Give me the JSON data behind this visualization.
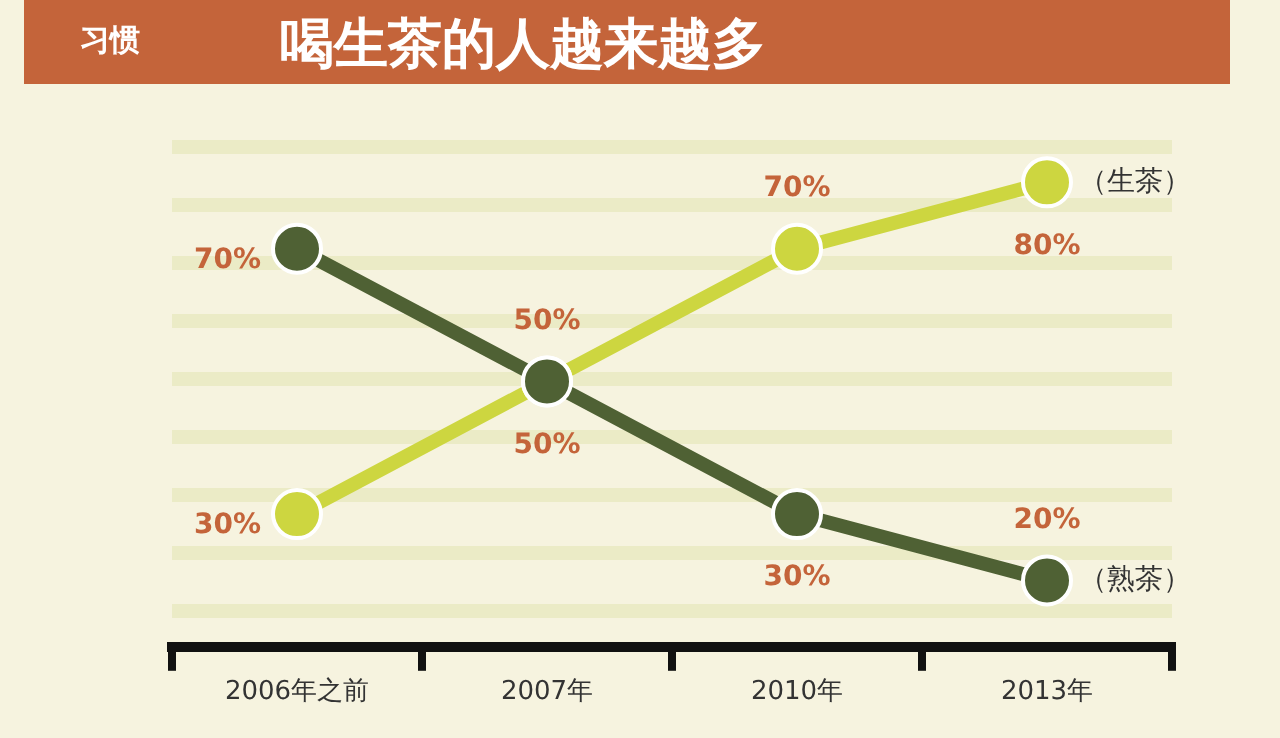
{
  "chart_data": {
    "type": "line",
    "title": "喝生茶的人越来越多",
    "subtitle": "习惯",
    "categories": [
      "2006年之前",
      "2007年",
      "2010年",
      "2013年"
    ],
    "series": [
      {
        "name": "（熟茶）",
        "color": "#4f6134",
        "values": [
          70,
          50,
          30,
          20
        ],
        "value_labels": [
          "70%",
          "50%",
          "30%",
          "20%"
        ]
      },
      {
        "name": "（生茶）",
        "color": "#cdd640",
        "values": [
          30,
          50,
          70,
          80
        ],
        "value_labels": [
          "30%",
          "50%",
          "70%",
          "80%"
        ]
      }
    ],
    "grid": false,
    "legend": false,
    "marker": "circle",
    "line_style": "solid",
    "tick_labels": "x"
  }
}
